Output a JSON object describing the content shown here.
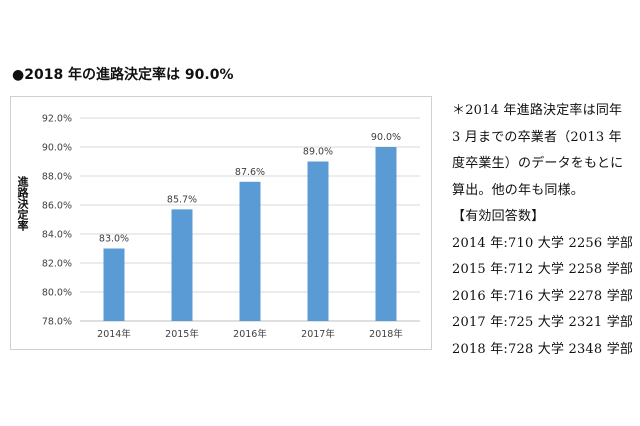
{
  "heading": "●2018 年の進路決定率は 90.0%",
  "chart_data": {
    "type": "bar",
    "categories": [
      "2014年",
      "2015年",
      "2016年",
      "2017年",
      "2018年"
    ],
    "values": [
      83.0,
      85.7,
      87.6,
      89.0,
      90.0
    ],
    "data_labels": [
      "83.0%",
      "85.7%",
      "87.6%",
      "89.0%",
      "90.0%"
    ],
    "ylabel": "進路決定率",
    "ylim": [
      78.0,
      92.0
    ],
    "yticks": [
      78.0,
      80.0,
      82.0,
      84.0,
      86.0,
      88.0,
      90.0,
      92.0
    ],
    "ytick_labels": [
      "78.0%",
      "80.0%",
      "82.0%",
      "84.0%",
      "86.0%",
      "88.0%",
      "90.0%",
      "92.0%"
    ],
    "grid": true,
    "bar_color": "#5b9bd5"
  },
  "note": {
    "lines": [
      "＊2014 年進路決定率は同年",
      "3 月までの卒業者（2013 年",
      "度卒業生）のデータをもとに",
      "算出。他の年も同様。",
      "【有効回答数】",
      "2014 年:710 大学 2256 学部",
      "2015 年:712 大学 2258 学部",
      "2016 年:716 大学 2278 学部",
      "2017 年:725 大学 2321 学部",
      "2018 年:728 大学 2348 学部"
    ]
  }
}
